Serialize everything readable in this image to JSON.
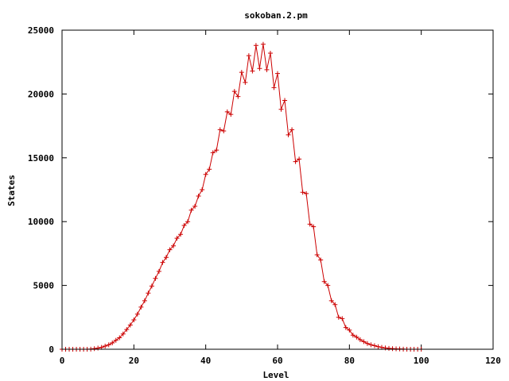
{
  "chart_data": {
    "type": "line",
    "title": "sokoban.2.pm",
    "xlabel": "Level",
    "ylabel": "States",
    "xlim": [
      0,
      120
    ],
    "ylim": [
      0,
      25000
    ],
    "xticks": [
      0,
      20,
      40,
      60,
      80,
      100,
      120
    ],
    "yticks": [
      0,
      5000,
      10000,
      15000,
      20000,
      25000
    ],
    "grid": false,
    "legend": "none",
    "marker": "plus",
    "series": [
      {
        "color": "#cc0000",
        "x": [
          0,
          1,
          2,
          3,
          4,
          5,
          6,
          7,
          8,
          9,
          10,
          11,
          12,
          13,
          14,
          15,
          16,
          17,
          18,
          19,
          20,
          21,
          22,
          23,
          24,
          25,
          26,
          27,
          28,
          29,
          30,
          31,
          32,
          33,
          34,
          35,
          36,
          37,
          38,
          39,
          40,
          41,
          42,
          43,
          44,
          45,
          46,
          47,
          48,
          49,
          50,
          51,
          52,
          53,
          54,
          55,
          56,
          57,
          58,
          59,
          60,
          61,
          62,
          63,
          64,
          65,
          66,
          67,
          68,
          69,
          70,
          71,
          72,
          73,
          74,
          75,
          76,
          77,
          78,
          79,
          80,
          81,
          82,
          83,
          84,
          85,
          86,
          87,
          88,
          89,
          90,
          91,
          92,
          93,
          94,
          95,
          96,
          97,
          98,
          99,
          100
        ],
        "y": [
          0,
          0,
          0,
          0,
          0,
          0,
          0,
          0,
          10,
          50,
          90,
          150,
          250,
          350,
          500,
          700,
          900,
          1200,
          1550,
          1900,
          2300,
          2750,
          3300,
          3800,
          4400,
          4950,
          5550,
          6100,
          6800,
          7200,
          7800,
          8100,
          8700,
          9000,
          9700,
          10000,
          10900,
          11200,
          12000,
          12500,
          13700,
          14100,
          15400,
          15600,
          17200,
          17100,
          18600,
          18400,
          20200,
          19800,
          21700,
          20900,
          23000,
          21800,
          23800,
          22000,
          23900,
          21900,
          23200,
          20500,
          21600,
          18800,
          19500,
          16800,
          17200,
          14700,
          14900,
          12300,
          12200,
          9800,
          9600,
          7400,
          7000,
          5300,
          5000,
          3800,
          3500,
          2500,
          2400,
          1700,
          1500,
          1100,
          950,
          750,
          600,
          450,
          350,
          280,
          200,
          150,
          100,
          70,
          50,
          30,
          20,
          10,
          0,
          0,
          0,
          0,
          0
        ]
      }
    ]
  }
}
